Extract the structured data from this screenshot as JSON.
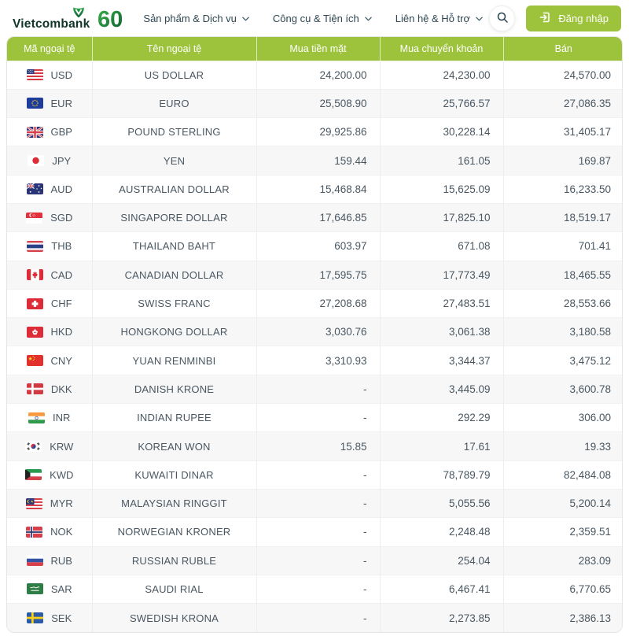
{
  "header": {
    "logo_text": "Vietcombank",
    "anniversary_text": "60",
    "nav": [
      {
        "label": "Sản phẩm & Dịch vụ"
      },
      {
        "label": "Công cụ & Tiện ích"
      },
      {
        "label": "Liên hệ & Hỗ trợ"
      }
    ],
    "login_label": "Đăng nhập"
  },
  "colors": {
    "accent_green": "#9dc33c",
    "brand_green_dark": "#0a5c30",
    "brand_green_light": "#3cb54a"
  },
  "table": {
    "columns": [
      "Mã ngoại tệ",
      "Tên ngoại tệ",
      "Mua tiền mặt",
      "Mua chuyển khoản",
      "Bán"
    ],
    "rows": [
      {
        "flag": "us",
        "code": "USD",
        "name": "US DOLLAR",
        "cash": "24,200.00",
        "transfer": "24,230.00",
        "sell": "24,570.00"
      },
      {
        "flag": "eu",
        "code": "EUR",
        "name": "EURO",
        "cash": "25,508.90",
        "transfer": "25,766.57",
        "sell": "27,086.35"
      },
      {
        "flag": "gb",
        "code": "GBP",
        "name": "POUND STERLING",
        "cash": "29,925.86",
        "transfer": "30,228.14",
        "sell": "31,405.17"
      },
      {
        "flag": "jp",
        "code": "JPY",
        "name": "YEN",
        "cash": "159.44",
        "transfer": "161.05",
        "sell": "169.87"
      },
      {
        "flag": "au",
        "code": "AUD",
        "name": "AUSTRALIAN DOLLAR",
        "cash": "15,468.84",
        "transfer": "15,625.09",
        "sell": "16,233.50"
      },
      {
        "flag": "sg",
        "code": "SGD",
        "name": "SINGAPORE DOLLAR",
        "cash": "17,646.85",
        "transfer": "17,825.10",
        "sell": "18,519.17"
      },
      {
        "flag": "th",
        "code": "THB",
        "name": "THAILAND BAHT",
        "cash": "603.97",
        "transfer": "671.08",
        "sell": "701.41"
      },
      {
        "flag": "ca",
        "code": "CAD",
        "name": "CANADIAN DOLLAR",
        "cash": "17,595.75",
        "transfer": "17,773.49",
        "sell": "18,465.55"
      },
      {
        "flag": "ch",
        "code": "CHF",
        "name": "SWISS FRANC",
        "cash": "27,208.68",
        "transfer": "27,483.51",
        "sell": "28,553.66"
      },
      {
        "flag": "hk",
        "code": "HKD",
        "name": "HONGKONG DOLLAR",
        "cash": "3,030.76",
        "transfer": "3,061.38",
        "sell": "3,180.58"
      },
      {
        "flag": "cn",
        "code": "CNY",
        "name": "YUAN RENMINBI",
        "cash": "3,310.93",
        "transfer": "3,344.37",
        "sell": "3,475.12"
      },
      {
        "flag": "dk",
        "code": "DKK",
        "name": "DANISH KRONE",
        "cash": "-",
        "transfer": "3,445.09",
        "sell": "3,600.78"
      },
      {
        "flag": "in",
        "code": "INR",
        "name": "INDIAN RUPEE",
        "cash": "-",
        "transfer": "292.29",
        "sell": "306.00"
      },
      {
        "flag": "kr",
        "code": "KRW",
        "name": "KOREAN WON",
        "cash": "15.85",
        "transfer": "17.61",
        "sell": "19.33"
      },
      {
        "flag": "kw",
        "code": "KWD",
        "name": "KUWAITI DINAR",
        "cash": "-",
        "transfer": "78,789.79",
        "sell": "82,484.08"
      },
      {
        "flag": "my",
        "code": "MYR",
        "name": "MALAYSIAN RINGGIT",
        "cash": "-",
        "transfer": "5,055.56",
        "sell": "5,200.14"
      },
      {
        "flag": "no",
        "code": "NOK",
        "name": "NORWEGIAN KRONER",
        "cash": "-",
        "transfer": "2,248.48",
        "sell": "2,359.51"
      },
      {
        "flag": "ru",
        "code": "RUB",
        "name": "RUSSIAN RUBLE",
        "cash": "-",
        "transfer": "254.04",
        "sell": "283.09"
      },
      {
        "flag": "sa",
        "code": "SAR",
        "name": "SAUDI RIAL",
        "cash": "-",
        "transfer": "6,467.41",
        "sell": "6,770.65"
      },
      {
        "flag": "se",
        "code": "SEK",
        "name": "SWEDISH KRONA",
        "cash": "-",
        "transfer": "2,273.85",
        "sell": "2,386.13"
      }
    ]
  }
}
